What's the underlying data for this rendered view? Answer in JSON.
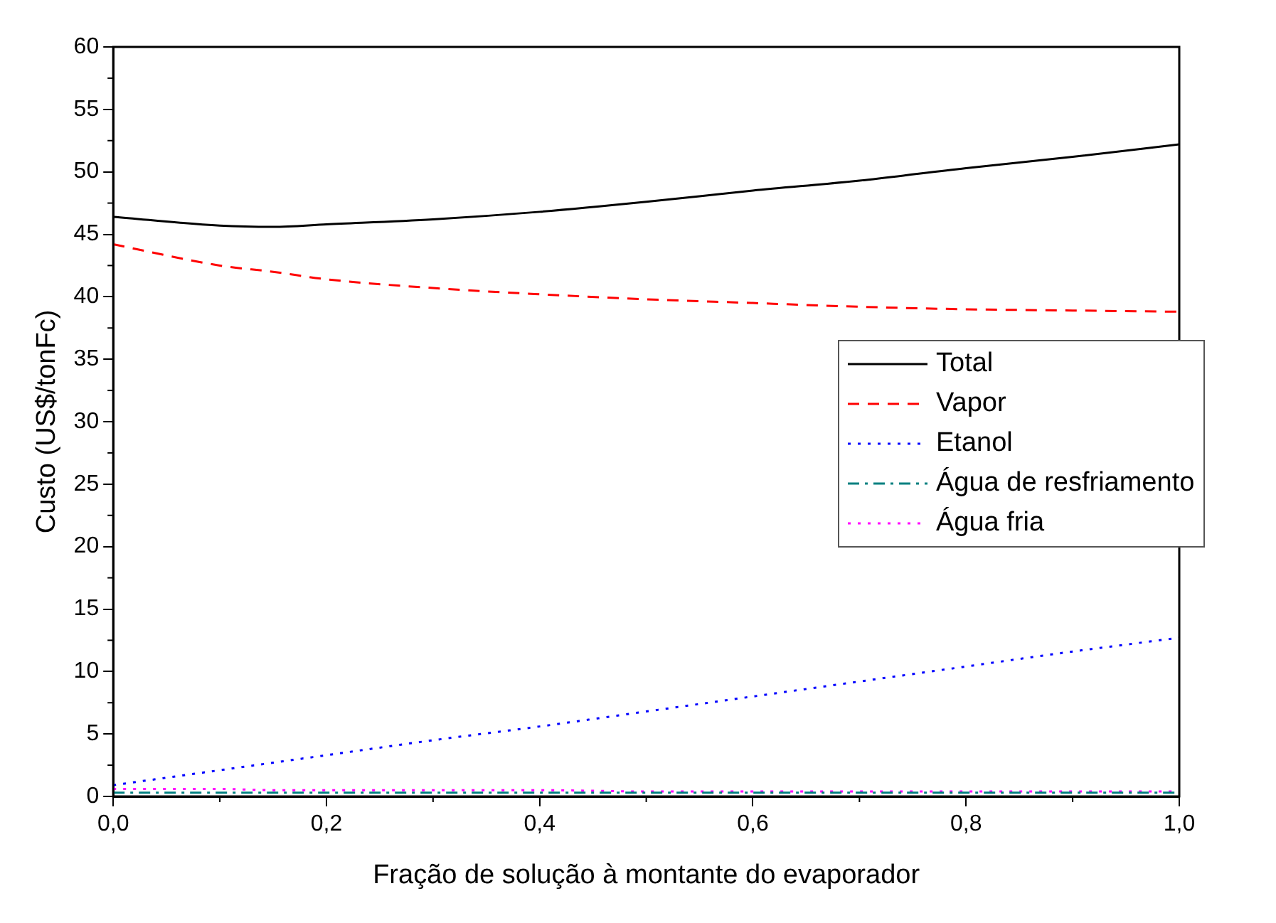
{
  "chart_data": {
    "type": "line",
    "xlabel": "Fração de solução à montante do evaporador",
    "ylabel": "Custo (US$/tonFc)",
    "x": [
      0,
      0.1,
      0.15,
      0.2,
      0.3,
      0.4,
      0.5,
      0.6,
      0.7,
      0.8,
      0.9,
      1.0
    ],
    "series": [
      {
        "name": "Total",
        "color": "#000000",
        "line_style": "solid",
        "values": [
          46.4,
          45.7,
          45.6,
          45.8,
          46.2,
          46.8,
          47.6,
          48.5,
          49.3,
          50.3,
          51.2,
          52.2
        ]
      },
      {
        "name": "Vapor",
        "color": "#ff0000",
        "line_style": "dashed",
        "values": [
          44.2,
          42.5,
          42.0,
          41.4,
          40.7,
          40.2,
          39.8,
          39.5,
          39.2,
          39.0,
          38.9,
          38.8
        ]
      },
      {
        "name": "Etanol",
        "color": "#0000ff",
        "line_style": "dotted",
        "values": [
          0.9,
          2.1,
          2.7,
          3.3,
          4.5,
          5.6,
          6.8,
          8.0,
          9.2,
          10.4,
          11.6,
          12.7
        ]
      },
      {
        "name": "Água de resfriamento",
        "color": "#008080",
        "line_style": "dashdot",
        "values": [
          0.3,
          0.3,
          0.3,
          0.3,
          0.3,
          0.3,
          0.3,
          0.3,
          0.3,
          0.3,
          0.3,
          0.3
        ]
      },
      {
        "name": "Água fria",
        "color": "#ff00ff",
        "line_style": "dotted",
        "values": [
          0.6,
          0.6,
          0.5,
          0.5,
          0.5,
          0.5,
          0.4,
          0.4,
          0.4,
          0.4,
          0.4,
          0.4
        ]
      }
    ],
    "xlim": [
      0,
      1
    ],
    "xticks": [
      {
        "value": 0,
        "label": "0,0"
      },
      {
        "value": 0.2,
        "label": "0,2"
      },
      {
        "value": 0.4,
        "label": "0,4"
      },
      {
        "value": 0.6,
        "label": "0,6"
      },
      {
        "value": 0.8,
        "label": "0,8"
      },
      {
        "value": 1,
        "label": "1,0"
      }
    ],
    "ylim": [
      0,
      60
    ],
    "yticks": [
      0,
      5,
      10,
      15,
      20,
      25,
      30,
      35,
      40,
      45,
      50,
      55,
      60
    ],
    "grid": false,
    "legend": "right",
    "marker": "none"
  }
}
